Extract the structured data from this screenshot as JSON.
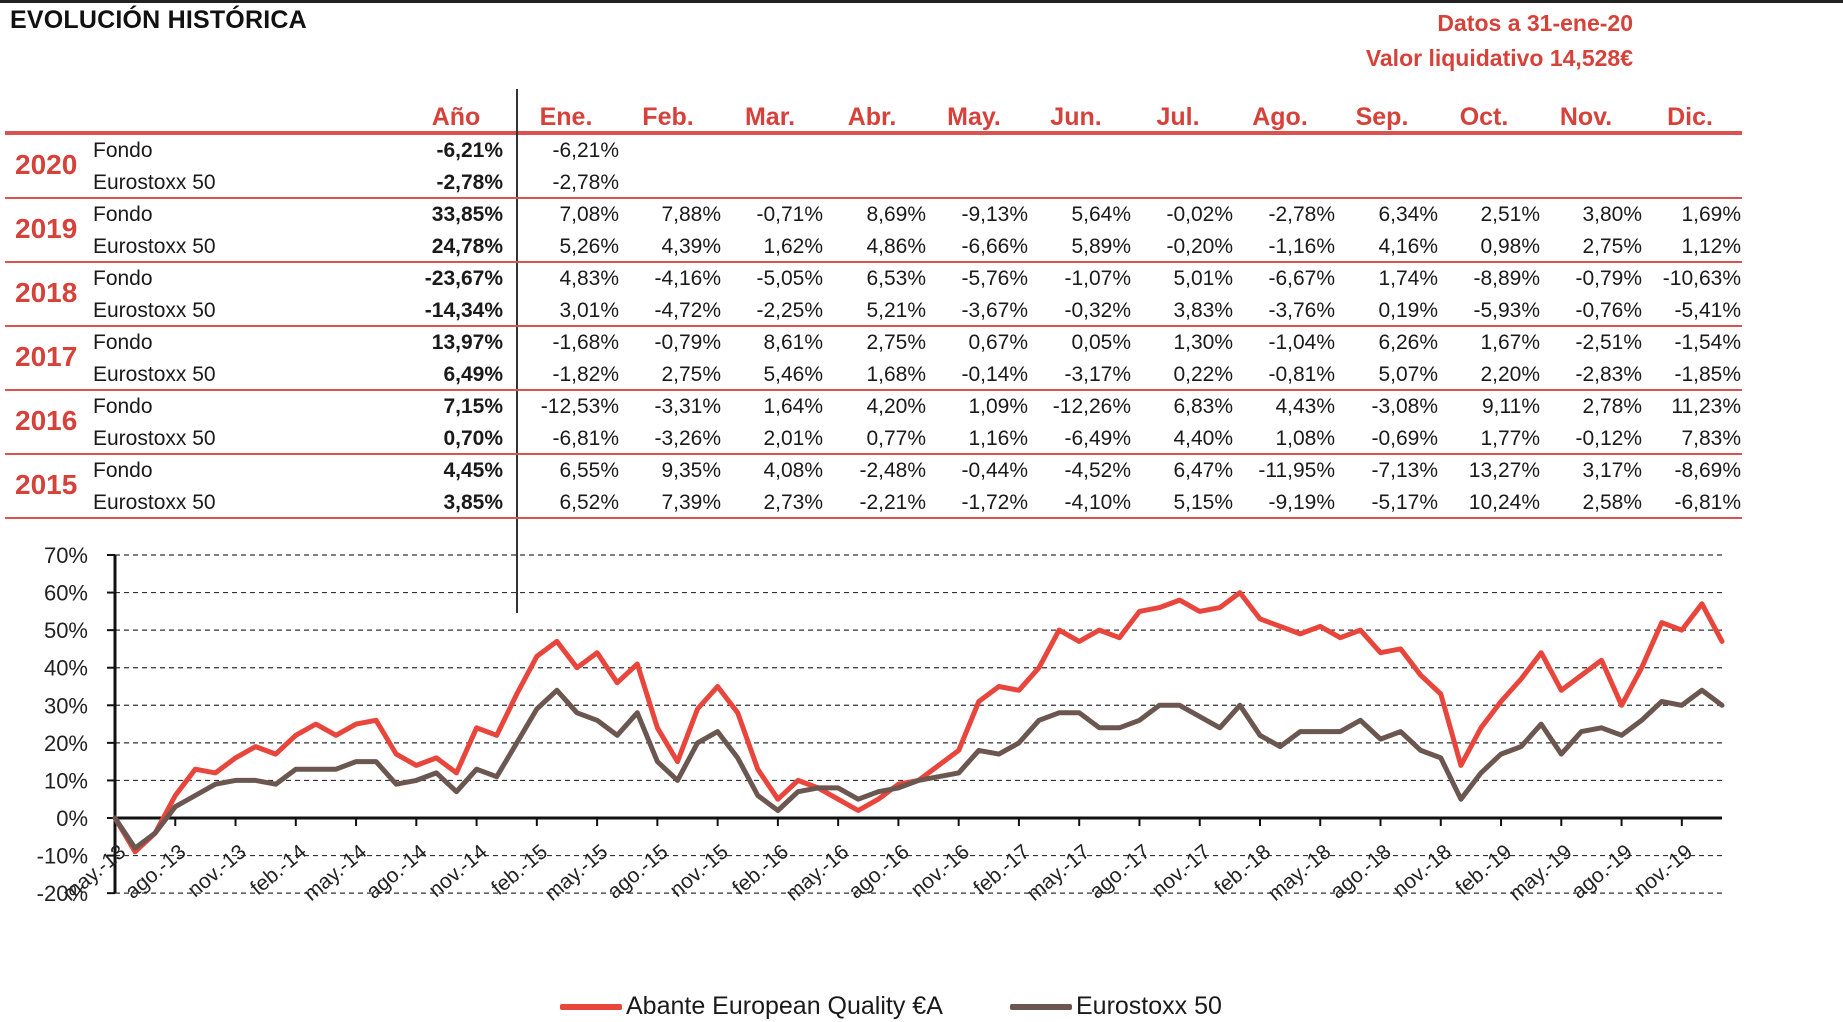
{
  "title": "EVOLUCIÓN HISTÓRICA",
  "meta": {
    "date_line": "Datos a 31-ene-20",
    "nav_line": "Valor liquidativo 14,528€"
  },
  "colors": {
    "accent": "#d6413a",
    "fund": "#e8453c",
    "index": "#6b5650",
    "separator": "#d9534f"
  },
  "table": {
    "headers": [
      "Año",
      "Ene.",
      "Feb.",
      "Mar.",
      "Abr.",
      "May.",
      "Jun.",
      "Jul.",
      "Ago.",
      "Sep.",
      "Oct.",
      "Nov.",
      "Dic."
    ],
    "years": [
      {
        "year": "2020",
        "rows": [
          {
            "label": "Fondo",
            "annual": "-6,21%",
            "months": [
              "-6,21%",
              "",
              "",
              "",
              "",
              "",
              "",
              "",
              "",
              "",
              "",
              ""
            ]
          },
          {
            "label": "Eurostoxx 50",
            "annual": "-2,78%",
            "months": [
              "-2,78%",
              "",
              "",
              "",
              "",
              "",
              "",
              "",
              "",
              "",
              "",
              ""
            ]
          }
        ]
      },
      {
        "year": "2019",
        "rows": [
          {
            "label": "Fondo",
            "annual": "33,85%",
            "months": [
              "7,08%",
              "7,88%",
              "-0,71%",
              "8,69%",
              "-9,13%",
              "5,64%",
              "-0,02%",
              "-2,78%",
              "6,34%",
              "2,51%",
              "3,80%",
              "1,69%"
            ]
          },
          {
            "label": "Eurostoxx 50",
            "annual": "24,78%",
            "months": [
              "5,26%",
              "4,39%",
              "1,62%",
              "4,86%",
              "-6,66%",
              "5,89%",
              "-0,20%",
              "-1,16%",
              "4,16%",
              "0,98%",
              "2,75%",
              "1,12%"
            ]
          }
        ]
      },
      {
        "year": "2018",
        "rows": [
          {
            "label": "Fondo",
            "annual": "-23,67%",
            "months": [
              "4,83%",
              "-4,16%",
              "-5,05%",
              "6,53%",
              "-5,76%",
              "-1,07%",
              "5,01%",
              "-6,67%",
              "1,74%",
              "-8,89%",
              "-0,79%",
              "-10,63%"
            ]
          },
          {
            "label": "Eurostoxx 50",
            "annual": "-14,34%",
            "months": [
              "3,01%",
              "-4,72%",
              "-2,25%",
              "5,21%",
              "-3,67%",
              "-0,32%",
              "3,83%",
              "-3,76%",
              "0,19%",
              "-5,93%",
              "-0,76%",
              "-5,41%"
            ]
          }
        ]
      },
      {
        "year": "2017",
        "rows": [
          {
            "label": "Fondo",
            "annual": "13,97%",
            "months": [
              "-1,68%",
              "-0,79%",
              "8,61%",
              "2,75%",
              "0,67%",
              "0,05%",
              "1,30%",
              "-1,04%",
              "6,26%",
              "1,67%",
              "-2,51%",
              "-1,54%"
            ]
          },
          {
            "label": "Eurostoxx 50",
            "annual": "6,49%",
            "months": [
              "-1,82%",
              "2,75%",
              "5,46%",
              "1,68%",
              "-0,14%",
              "-3,17%",
              "0,22%",
              "-0,81%",
              "5,07%",
              "2,20%",
              "-2,83%",
              "-1,85%"
            ]
          }
        ]
      },
      {
        "year": "2016",
        "rows": [
          {
            "label": "Fondo",
            "annual": "7,15%",
            "months": [
              "-12,53%",
              "-3,31%",
              "1,64%",
              "4,20%",
              "1,09%",
              "-12,26%",
              "6,83%",
              "4,43%",
              "-3,08%",
              "9,11%",
              "2,78%",
              "11,23%"
            ]
          },
          {
            "label": "Eurostoxx 50",
            "annual": "0,70%",
            "months": [
              "-6,81%",
              "-3,26%",
              "2,01%",
              "0,77%",
              "1,16%",
              "-6,49%",
              "4,40%",
              "1,08%",
              "-0,69%",
              "1,77%",
              "-0,12%",
              "7,83%"
            ]
          }
        ]
      },
      {
        "year": "2015",
        "rows": [
          {
            "label": "Fondo",
            "annual": "4,45%",
            "months": [
              "6,55%",
              "9,35%",
              "4,08%",
              "-2,48%",
              "-0,44%",
              "-4,52%",
              "6,47%",
              "-11,95%",
              "-7,13%",
              "13,27%",
              "3,17%",
              "-8,69%"
            ]
          },
          {
            "label": "Eurostoxx 50",
            "annual": "3,85%",
            "months": [
              "6,52%",
              "7,39%",
              "2,73%",
              "-2,21%",
              "-1,72%",
              "-4,10%",
              "5,15%",
              "-9,19%",
              "-5,17%",
              "10,24%",
              "2,58%",
              "-6,81%"
            ]
          }
        ]
      }
    ]
  },
  "chart_data": {
    "type": "line",
    "ylim": [
      -20,
      70
    ],
    "y_ticks": [
      "-20%",
      "-10%",
      "0%",
      "10%",
      "20%",
      "30%",
      "40%",
      "50%",
      "60%",
      "70%"
    ],
    "grid": "horizontal dashed",
    "legend_position": "bottom-center",
    "x_tick_labels": [
      "may.-13",
      "ago.-13",
      "nov.-13",
      "feb.-14",
      "may.-14",
      "ago.-14",
      "nov.-14",
      "feb.-15",
      "may.-15",
      "ago.-15",
      "nov.-15",
      "feb.-16",
      "may.-16",
      "ago.-16",
      "nov.-16",
      "feb.-17",
      "may.-17",
      "ago.-17",
      "nov.-17",
      "feb.-18",
      "may.-18",
      "ago.-18",
      "nov.-18",
      "feb.-19",
      "may.-19",
      "ago.-19",
      "nov.-19"
    ],
    "x_periods": [
      "2013-05",
      "2013-06",
      "2013-07",
      "2013-08",
      "2013-09",
      "2013-10",
      "2013-11",
      "2013-12",
      "2014-01",
      "2014-02",
      "2014-03",
      "2014-04",
      "2014-05",
      "2014-06",
      "2014-07",
      "2014-08",
      "2014-09",
      "2014-10",
      "2014-11",
      "2014-12",
      "2015-01",
      "2015-02",
      "2015-03",
      "2015-04",
      "2015-05",
      "2015-06",
      "2015-07",
      "2015-08",
      "2015-09",
      "2015-10",
      "2015-11",
      "2015-12",
      "2016-01",
      "2016-02",
      "2016-03",
      "2016-04",
      "2016-05",
      "2016-06",
      "2016-07",
      "2016-08",
      "2016-09",
      "2016-10",
      "2016-11",
      "2016-12",
      "2017-01",
      "2017-02",
      "2017-03",
      "2017-04",
      "2017-05",
      "2017-06",
      "2017-07",
      "2017-08",
      "2017-09",
      "2017-10",
      "2017-11",
      "2017-12",
      "2018-01",
      "2018-02",
      "2018-03",
      "2018-04",
      "2018-05",
      "2018-06",
      "2018-07",
      "2018-08",
      "2018-09",
      "2018-10",
      "2018-11",
      "2018-12",
      "2019-01",
      "2019-02",
      "2019-03",
      "2019-04",
      "2019-05",
      "2019-06",
      "2019-07",
      "2019-08",
      "2019-09",
      "2019-10",
      "2019-11",
      "2019-12",
      "2020-01"
    ],
    "series": [
      {
        "name": "Abante European Quality €A",
        "color": "#e8453c",
        "values": [
          0,
          -9,
          -4,
          6,
          13,
          12,
          16,
          19,
          17,
          22,
          25,
          22,
          25,
          26,
          17,
          14,
          16,
          12,
          24,
          22,
          33,
          43,
          47,
          40,
          44,
          36,
          41,
          24,
          15,
          29,
          35,
          28,
          13,
          5,
          10,
          8,
          5,
          2,
          5,
          9,
          10,
          14,
          18,
          31,
          35,
          34,
          40,
          50,
          47,
          50,
          48,
          55,
          56,
          58,
          55,
          56,
          60,
          53,
          51,
          49,
          51,
          48,
          50,
          44,
          45,
          38,
          33,
          14,
          24,
          31,
          37,
          44,
          34,
          38,
          42,
          30,
          40,
          52,
          50,
          57,
          47
        ]
      },
      {
        "name": "Eurostoxx 50",
        "color": "#6b5650",
        "values": [
          0,
          -8,
          -4,
          3,
          6,
          9,
          10,
          10,
          9,
          13,
          13,
          13,
          15,
          15,
          9,
          10,
          12,
          7,
          13,
          11,
          20,
          29,
          34,
          28,
          26,
          22,
          28,
          15,
          10,
          20,
          23,
          16,
          6,
          2,
          7,
          8,
          8,
          5,
          7,
          8,
          10,
          11,
          12,
          18,
          17,
          20,
          26,
          28,
          28,
          24,
          24,
          26,
          30,
          30,
          27,
          24,
          30,
          22,
          19,
          23,
          23,
          23,
          26,
          21,
          23,
          18,
          16,
          5,
          12,
          17,
          19,
          25,
          17,
          23,
          24,
          22,
          26,
          31,
          30,
          34,
          30
        ]
      }
    ]
  }
}
